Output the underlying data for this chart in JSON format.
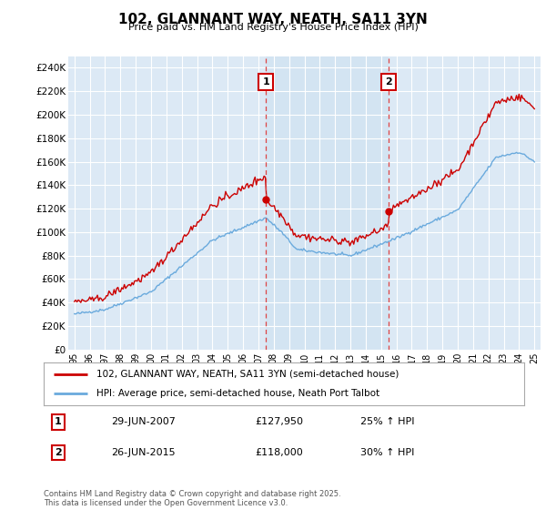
{
  "title": "102, GLANNANT WAY, NEATH, SA11 3YN",
  "subtitle": "Price paid vs. HM Land Registry's House Price Index (HPI)",
  "legend_line1": "102, GLANNANT WAY, NEATH, SA11 3YN (semi-detached house)",
  "legend_line2": "HPI: Average price, semi-detached house, Neath Port Talbot",
  "sale1_label": "1",
  "sale1_date": "29-JUN-2007",
  "sale1_price": "£127,950",
  "sale1_hpi": "25% ↑ HPI",
  "sale1_year": 2007.49,
  "sale1_value": 127950,
  "sale2_label": "2",
  "sale2_date": "26-JUN-2015",
  "sale2_price": "£118,000",
  "sale2_hpi": "30% ↑ HPI",
  "sale2_year": 2015.49,
  "sale2_value": 118000,
  "hpi_color": "#6aaadd",
  "price_color": "#cc0000",
  "vline_color": "#dd4444",
  "background_color": "#dce9f5",
  "owned_period_color": "#ccddf0",
  "grid_color": "#ffffff",
  "ylim": [
    0,
    250000
  ],
  "yticks": [
    0,
    20000,
    40000,
    60000,
    80000,
    100000,
    120000,
    140000,
    160000,
    180000,
    200000,
    220000,
    240000
  ],
  "footer": "Contains HM Land Registry data © Crown copyright and database right 2025.\nThis data is licensed under the Open Government Licence v3.0.",
  "xlim_start": 1994.6,
  "xlim_end": 2025.4
}
